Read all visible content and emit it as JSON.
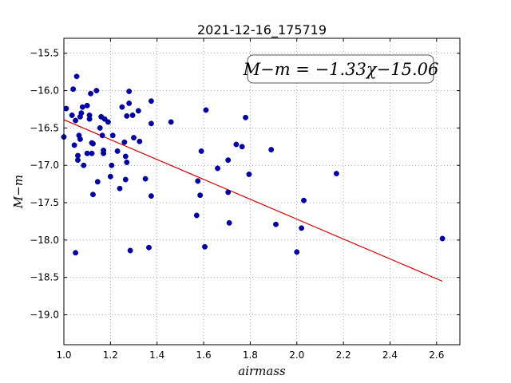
{
  "chart_data": {
    "type": "scatter",
    "title": "2021-12-16_175719",
    "xlabel": "airmass",
    "ylabel": "M−m",
    "annotation": "M−m = −1.33χ−15.06",
    "xlim": [
      1.0,
      2.7
    ],
    "ylim": [
      -19.4,
      -15.3
    ],
    "y_inverted": true,
    "grid": true,
    "xticks": [
      1.0,
      1.2,
      1.4,
      1.6,
      1.8,
      2.0,
      2.2,
      2.4,
      2.6
    ],
    "xtick_labels": [
      "1.0",
      "1.2",
      "1.4",
      "1.6",
      "1.8",
      "2.0",
      "2.2",
      "2.4",
      "2.6"
    ],
    "yticks": [
      -15.5,
      -16.0,
      -16.5,
      -17.0,
      -17.5,
      -18.0,
      -18.5,
      -19.0
    ],
    "ytick_labels": [
      "−15.5",
      "−16.0",
      "−16.5",
      "−17.0",
      "−17.5",
      "−18.0",
      "−18.5",
      "−19.0"
    ],
    "fit": {
      "slope": -1.33,
      "intercept": -15.06,
      "x_range": [
        1.0,
        2.625
      ],
      "color": "#cc0000"
    },
    "point_color": "#0000aa",
    "points": [
      [
        1.0,
        -16.62
      ],
      [
        1.01,
        -16.24
      ],
      [
        1.035,
        -16.33
      ],
      [
        1.04,
        -15.98
      ],
      [
        1.045,
        -16.73
      ],
      [
        1.05,
        -16.4
      ],
      [
        1.055,
        -15.81
      ],
      [
        1.05,
        -18.17
      ],
      [
        1.06,
        -16.93
      ],
      [
        1.06,
        -16.87
      ],
      [
        1.065,
        -16.6
      ],
      [
        1.07,
        -16.65
      ],
      [
        1.07,
        -16.35
      ],
      [
        1.075,
        -16.3
      ],
      [
        1.08,
        -16.22
      ],
      [
        1.085,
        -17.0
      ],
      [
        1.1,
        -16.84
      ],
      [
        1.1,
        -16.2
      ],
      [
        1.11,
        -16.33
      ],
      [
        1.11,
        -16.38
      ],
      [
        1.115,
        -16.04
      ],
      [
        1.12,
        -16.7
      ],
      [
        1.12,
        -16.84
      ],
      [
        1.125,
        -17.39
      ],
      [
        1.125,
        -16.71
      ],
      [
        1.14,
        -16.0
      ],
      [
        1.145,
        -17.22
      ],
      [
        1.155,
        -16.5
      ],
      [
        1.16,
        -16.35
      ],
      [
        1.165,
        -16.6
      ],
      [
        1.17,
        -16.84
      ],
      [
        1.17,
        -16.8
      ],
      [
        1.175,
        -16.38
      ],
      [
        1.19,
        -16.42
      ],
      [
        1.2,
        -17.15
      ],
      [
        1.205,
        -17.0
      ],
      [
        1.21,
        -16.6
      ],
      [
        1.23,
        -16.81
      ],
      [
        1.24,
        -17.31
      ],
      [
        1.25,
        -16.22
      ],
      [
        1.26,
        -16.69
      ],
      [
        1.265,
        -16.88
      ],
      [
        1.265,
        -17.19
      ],
      [
        1.27,
        -16.96
      ],
      [
        1.27,
        -16.34
      ],
      [
        1.28,
        -16.17
      ],
      [
        1.28,
        -16.01
      ],
      [
        1.285,
        -18.14
      ],
      [
        1.295,
        -16.33
      ],
      [
        1.3,
        -16.63
      ],
      [
        1.32,
        -16.27
      ],
      [
        1.325,
        -16.68
      ],
      [
        1.35,
        -17.18
      ],
      [
        1.365,
        -18.1
      ],
      [
        1.375,
        -16.14
      ],
      [
        1.375,
        -16.44
      ],
      [
        1.375,
        -17.41
      ],
      [
        1.46,
        -16.42
      ],
      [
        1.57,
        -17.67
      ],
      [
        1.575,
        -17.21
      ],
      [
        1.585,
        -17.4
      ],
      [
        1.59,
        -16.81
      ],
      [
        1.605,
        -18.09
      ],
      [
        1.61,
        -16.26
      ],
      [
        1.66,
        -17.04
      ],
      [
        1.705,
        -16.93
      ],
      [
        1.705,
        -17.36
      ],
      [
        1.71,
        -17.77
      ],
      [
        1.74,
        -16.72
      ],
      [
        1.765,
        -16.75
      ],
      [
        1.78,
        -16.36
      ],
      [
        1.795,
        -17.12
      ],
      [
        1.89,
        -16.79
      ],
      [
        1.91,
        -17.79
      ],
      [
        2.0,
        -18.16
      ],
      [
        2.02,
        -17.84
      ],
      [
        2.03,
        -17.47
      ],
      [
        2.17,
        -17.11
      ],
      [
        2.625,
        -17.98
      ]
    ]
  }
}
